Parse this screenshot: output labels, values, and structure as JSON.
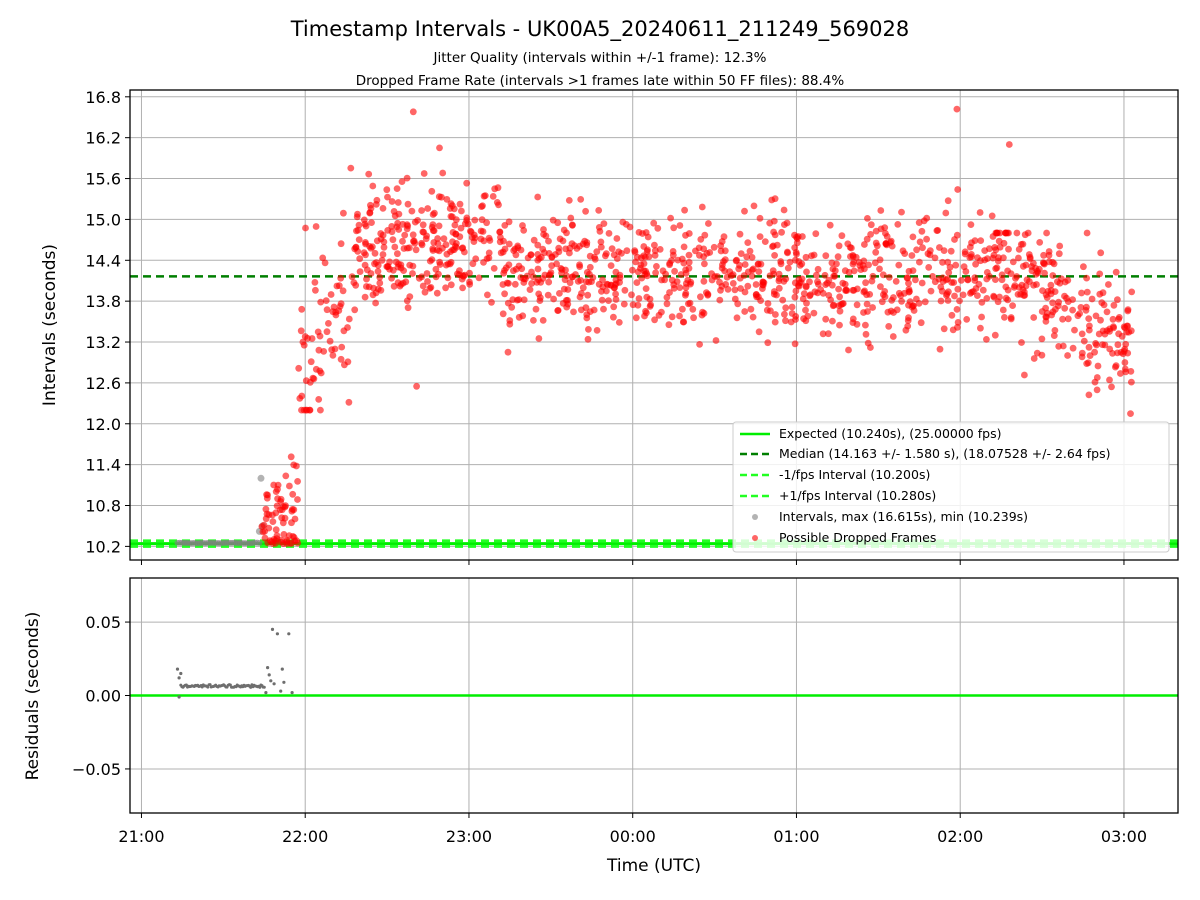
{
  "chart_data": [
    {
      "type": "scatter",
      "title": "Timestamp Intervals - UK00A5_20240611_211249_569028",
      "subtitles": [
        "Jitter Quality (intervals within +/-1 frame): 12.3%",
        "Dropped Frame Rate (intervals >1 frames late within 50 FF files): 88.4%"
      ],
      "xlabel": "",
      "ylabel": "Intervals (seconds)",
      "ylim": [
        10.0,
        16.9
      ],
      "xlim_hours": [
        20.93,
        27.33
      ],
      "x_axis_origin_label": "21:00",
      "yticks": [
        10.2,
        10.8,
        11.4,
        12.0,
        12.6,
        13.2,
        13.8,
        14.4,
        15.0,
        15.6,
        16.2,
        16.8
      ],
      "ytick_labels": [
        "10.2",
        "10.8",
        "11.4",
        "12.0",
        "12.6",
        "13.2",
        "13.8",
        "14.4",
        "15.0",
        "15.6",
        "16.2",
        "16.8"
      ],
      "xtick_hours": [
        21,
        22,
        23,
        24,
        25,
        26,
        27
      ],
      "grid": true,
      "legend_position": "lower-right",
      "colors": {
        "expected": "#00ee00",
        "median": "#007f00",
        "limit": "#22ff22",
        "normal_points": "#808080",
        "dropped_points": "#ff0000"
      },
      "series": [
        {
          "name": "Expected (10.240s), (25.00000 fps)",
          "kind": "hline",
          "y": 10.24
        },
        {
          "name": "Median (14.163 +/- 1.580 s), (18.07528 +/- 2.64 fps)",
          "kind": "hline",
          "y": 14.163
        },
        {
          "name": "-1/fps Interval (10.200s)",
          "kind": "hline",
          "y": 10.2
        },
        {
          "name": "+1/fps Interval (10.280s)",
          "kind": "hline",
          "y": 10.28
        },
        {
          "name": "Intervals, max (16.615s), min (10.239s)",
          "kind": "scatter",
          "x_range_hours": [
            21.22,
            21.72
          ],
          "y_range": [
            10.239,
            10.26
          ],
          "extra_points": [
            [
              21.72,
              10.42
            ],
            [
              21.73,
              11.2
            ],
            [
              21.74,
              10.5
            ]
          ]
        },
        {
          "name": "Possible Dropped Frames",
          "kind": "scatter",
          "segments": [
            {
              "x_range_hours": [
                21.73,
                21.96
              ],
              "y_low": 10.24,
              "y_high": 11.7,
              "trend": "rising"
            },
            {
              "x_range_hours": [
                21.96,
                22.3
              ],
              "y_low": 12.2,
              "y_high": 15.8,
              "trend": "rising"
            },
            {
              "x_range_hours": [
                22.3,
                23.2
              ],
              "y_low": 13.0,
              "y_high": 16.6,
              "center": 14.6
            },
            {
              "x_range_hours": [
                23.2,
                26.2
              ],
              "y_low": 12.8,
              "y_high": 16.6,
              "center": 14.2
            },
            {
              "x_range_hours": [
                26.2,
                27.05
              ],
              "y_low": 12.1,
              "y_high": 14.8,
              "trend": "falling"
            }
          ],
          "marked_points": [
            [
              22.66,
              16.58
            ],
            [
              25.98,
              16.62
            ],
            [
              22.82,
              16.05
            ],
            [
              26.3,
              16.1
            ],
            [
              22.68,
              12.55
            ],
            [
              27.04,
              12.15
            ]
          ]
        }
      ]
    },
    {
      "type": "scatter",
      "title": "",
      "xlabel": "Time (UTC)",
      "ylabel": "Residuals (seconds)",
      "ylim": [
        -0.08,
        0.08
      ],
      "yticks": [
        -0.05,
        0.0,
        0.05
      ],
      "ytick_labels": [
        "−0.05",
        "0.00",
        "0.05"
      ],
      "xtick_hours": [
        21,
        22,
        23,
        24,
        25,
        26,
        27
      ],
      "xtick_labels": [
        "21:00",
        "22:00",
        "23:00",
        "00:00",
        "01:00",
        "02:00",
        "03:00"
      ],
      "grid": true,
      "series": [
        {
          "name": "",
          "kind": "hline",
          "y": 0.0
        },
        {
          "name": "",
          "kind": "scatter",
          "points": [
            [
              21.22,
              0.018
            ],
            [
              21.23,
              0.012
            ],
            [
              21.23,
              -0.001
            ],
            [
              21.24,
              0.015
            ],
            [
              21.76,
              0.002
            ],
            [
              21.77,
              0.019
            ],
            [
              21.78,
              0.014
            ],
            [
              21.79,
              0.01
            ],
            [
              21.8,
              0.045
            ],
            [
              21.81,
              0.008
            ],
            [
              21.83,
              0.042
            ],
            [
              21.85,
              0.003
            ],
            [
              21.86,
              0.018
            ],
            [
              21.87,
              0.009
            ],
            [
              21.9,
              0.042
            ],
            [
              21.92,
              0.002
            ]
          ],
          "band": {
            "x_range_hours": [
              21.24,
              21.75
            ],
            "y": 0.0065
          }
        }
      ]
    }
  ]
}
